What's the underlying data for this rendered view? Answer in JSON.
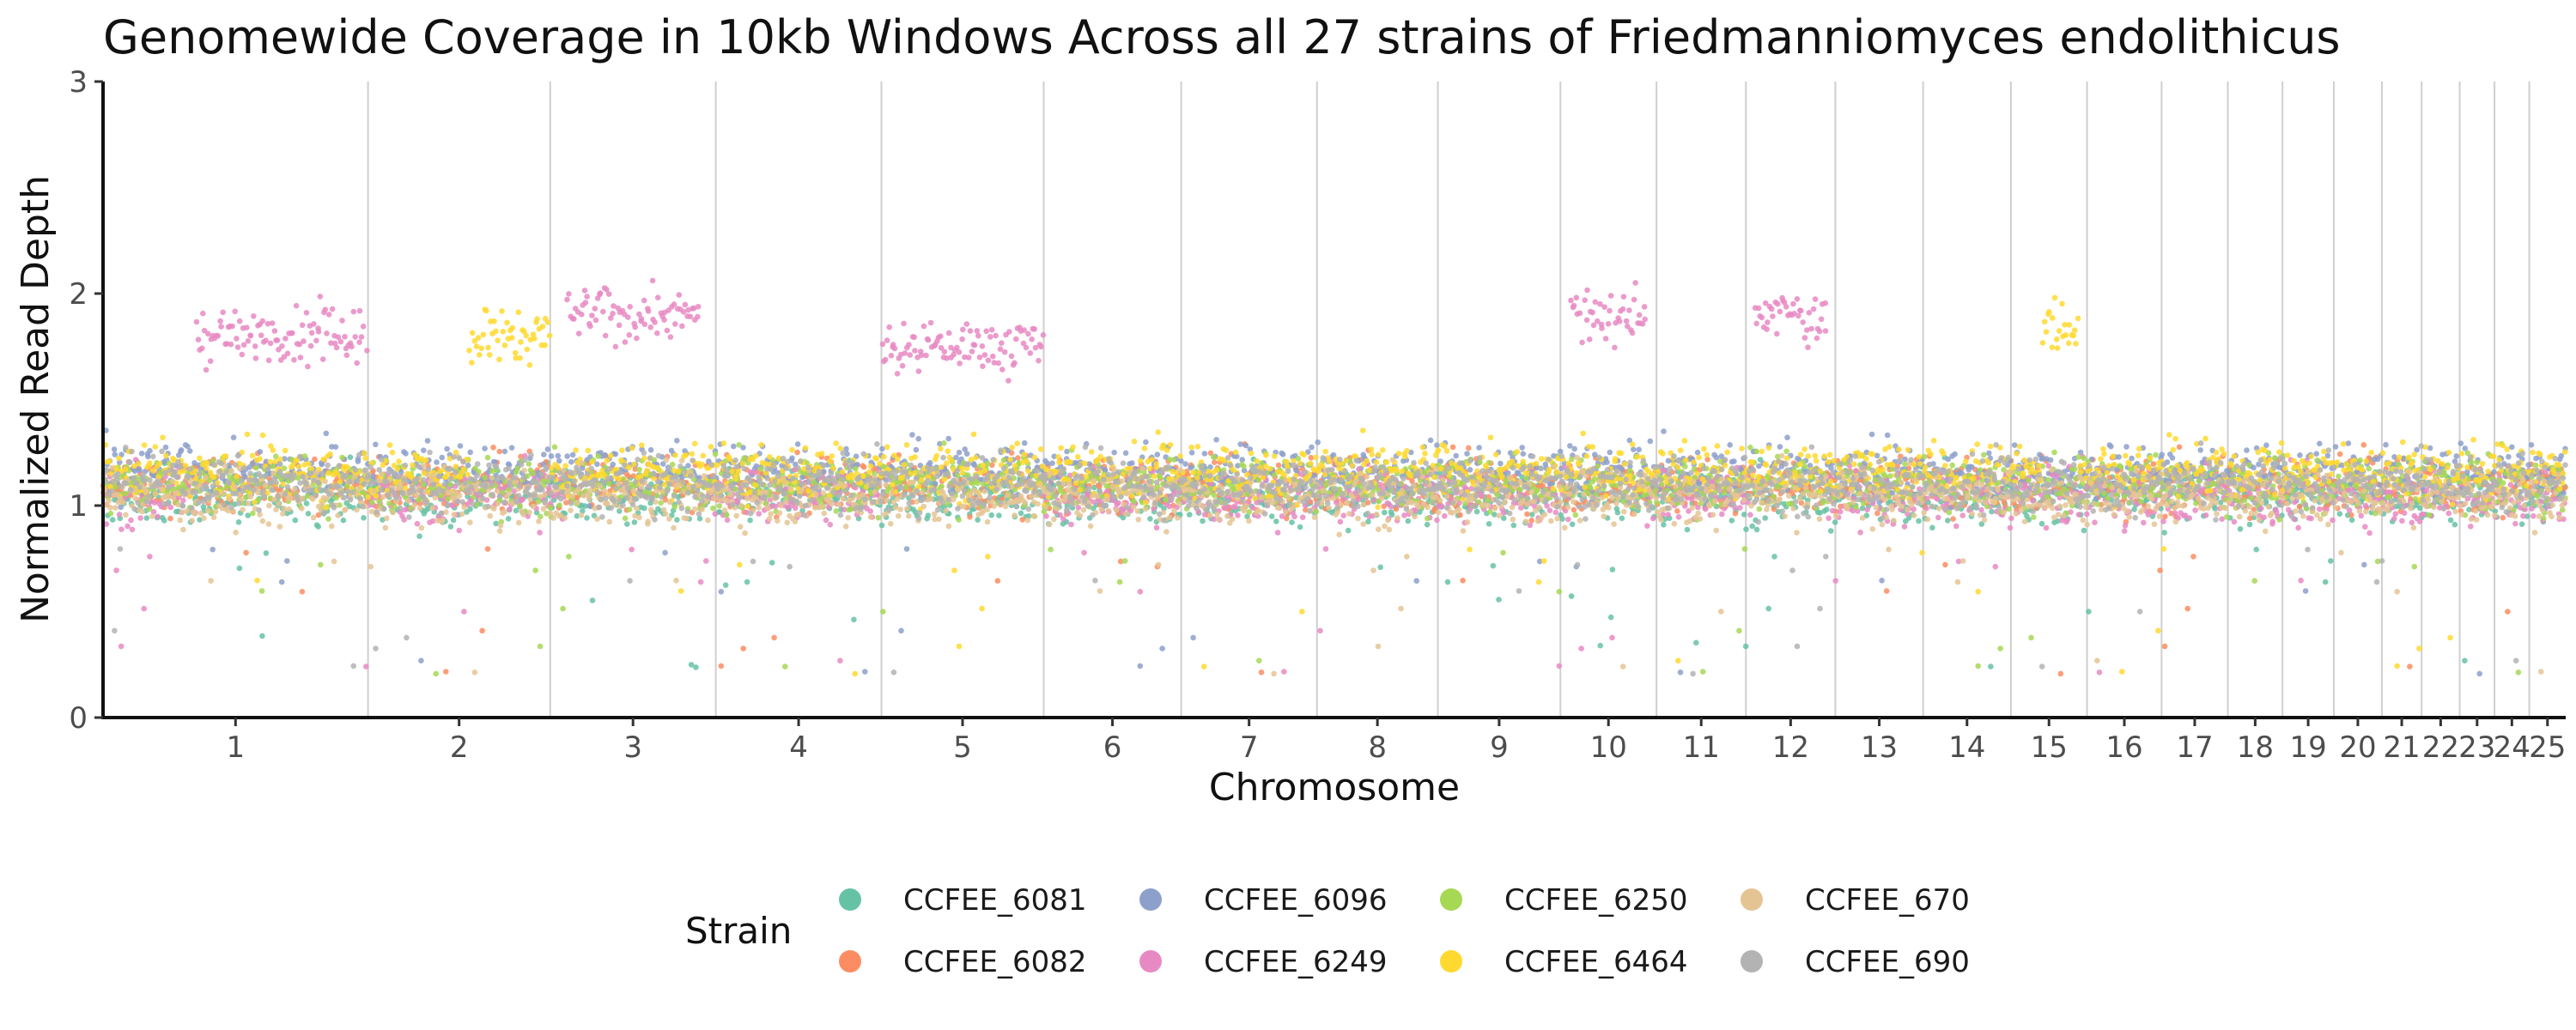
{
  "chart_data": {
    "type": "scatter",
    "title": "Genomewide Coverage in 10kb Windows Across all 27 strains of Friedmanniomyces endolithicus",
    "xlabel": "Chromosome",
    "ylabel": "Normalized Read Depth",
    "ylim": [
      0,
      3
    ],
    "y_ticks": [
      "0",
      "1",
      "2",
      "3"
    ],
    "grid": "vertical chromosome boundary lines only",
    "chromosomes": [
      {
        "label": "1",
        "start": 0,
        "end": 1.6
      },
      {
        "label": "2",
        "start": 1.6,
        "end": 2.7
      },
      {
        "label": "3",
        "start": 2.7,
        "end": 3.7
      },
      {
        "label": "4",
        "start": 3.7,
        "end": 4.7
      },
      {
        "label": "5",
        "start": 4.7,
        "end": 5.68
      },
      {
        "label": "6",
        "start": 5.68,
        "end": 6.51
      },
      {
        "label": "7",
        "start": 6.51,
        "end": 7.33
      },
      {
        "label": "8",
        "start": 7.33,
        "end": 8.06
      },
      {
        "label": "9",
        "start": 8.06,
        "end": 8.8
      },
      {
        "label": "10",
        "start": 8.8,
        "end": 9.38
      },
      {
        "label": "11",
        "start": 9.38,
        "end": 9.92
      },
      {
        "label": "12",
        "start": 9.92,
        "end": 10.46
      },
      {
        "label": "13",
        "start": 10.46,
        "end": 10.99
      },
      {
        "label": "14",
        "start": 10.99,
        "end": 11.52
      },
      {
        "label": "15",
        "start": 11.52,
        "end": 11.98
      },
      {
        "label": "16",
        "start": 11.98,
        "end": 12.43
      },
      {
        "label": "17",
        "start": 12.43,
        "end": 12.83
      },
      {
        "label": "18",
        "start": 12.83,
        "end": 13.16
      },
      {
        "label": "19",
        "start": 13.16,
        "end": 13.47
      },
      {
        "label": "20",
        "start": 13.47,
        "end": 13.76
      },
      {
        "label": "21",
        "start": 13.76,
        "end": 14.0
      },
      {
        "label": "22",
        "start": 14.0,
        "end": 14.23
      },
      {
        "label": "23",
        "start": 14.23,
        "end": 14.44
      },
      {
        "label": "24",
        "start": 14.44,
        "end": 14.65
      },
      {
        "label": "25",
        "start": 14.65,
        "end": 14.87
      }
    ],
    "legend": {
      "title": "Strain",
      "position": "bottom",
      "entries": [
        {
          "name": "CCFEE_6081",
          "color": "#66c2a5"
        },
        {
          "name": "CCFEE_6082",
          "color": "#fc8d62"
        },
        {
          "name": "CCFEE_6096",
          "color": "#8da0cb"
        },
        {
          "name": "CCFEE_6249",
          "color": "#e78ac3"
        },
        {
          "name": "CCFEE_6250",
          "color": "#a6d854"
        },
        {
          "name": "CCFEE_6464",
          "color": "#ffd92f"
        },
        {
          "name": "CCFEE_670",
          "color": "#e5c494"
        },
        {
          "name": "CCFEE_690",
          "color": "#b3b3b3"
        }
      ]
    },
    "series_profile": {
      "baseline": 1.1,
      "elevated_regions": [
        {
          "strain": "CCFEE_6249",
          "chromosome": "1",
          "from": 0.35,
          "to": 1.0,
          "depth": 1.8
        },
        {
          "strain": "CCFEE_6249",
          "chromosome": "3",
          "from": 0.1,
          "to": 0.9,
          "depth": 1.9
        },
        {
          "strain": "CCFEE_6249",
          "chromosome": "5",
          "from": 0.0,
          "to": 1.0,
          "depth": 1.75
        },
        {
          "strain": "CCFEE_6249",
          "chromosome": "10",
          "from": 0.1,
          "to": 0.9,
          "depth": 1.9
        },
        {
          "strain": "CCFEE_6249",
          "chromosome": "12",
          "from": 0.1,
          "to": 0.9,
          "depth": 1.9
        },
        {
          "strain": "CCFEE_6464",
          "chromosome": "2",
          "from": 0.55,
          "to": 1.0,
          "depth": 1.8
        },
        {
          "strain": "CCFEE_6464",
          "chromosome": "15",
          "from": 0.4,
          "to": 0.9,
          "depth": 1.85
        }
      ]
    }
  }
}
